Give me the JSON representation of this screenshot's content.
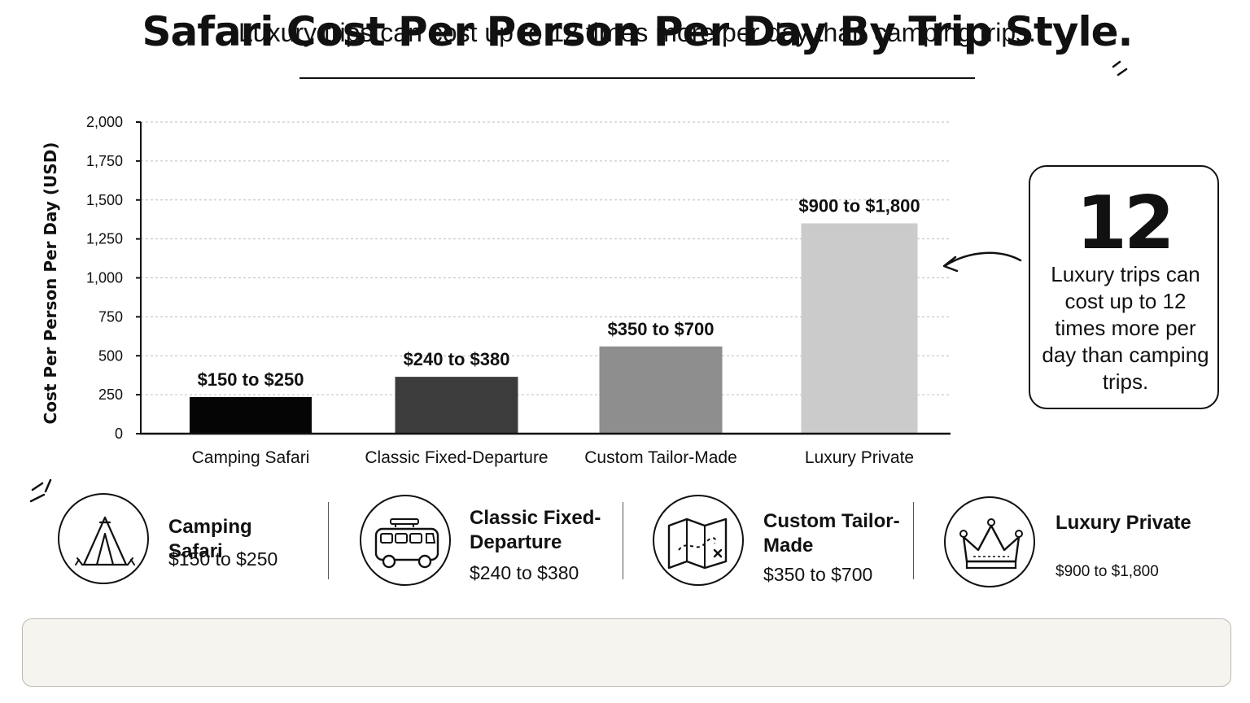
{
  "title": "Safari Cost Per Person Per Day By Trip Style.",
  "chart_data": {
    "type": "bar",
    "categories": [
      "Camping Safari",
      "Classic Fixed-Departure",
      "Custom Tailor-Made",
      "Luxury Private"
    ],
    "values": [
      235,
      365,
      560,
      1350
    ],
    "data_labels": [
      "$150 to $250",
      "$240 to $380",
      "$350 to $700",
      "$900 to $1,800"
    ],
    "colors": [
      "#050505",
      "#3c3c3c",
      "#8e8e8e",
      "#cbcbcb"
    ],
    "ylabel": "Cost Per Person Per Day (USD)",
    "ylim": [
      0,
      2000
    ],
    "yticks": [
      0,
      250,
      500,
      750,
      1000,
      1250,
      1500,
      1750,
      2000
    ],
    "ytick_labels": [
      "0",
      "250",
      "500",
      "750",
      "1,000",
      "1,250",
      "1,500",
      "1,750",
      "2,000"
    ],
    "grid": true
  },
  "callout": {
    "number": "12",
    "text": "Luxury trips can cost up to 12 times more per day than camping trips."
  },
  "summary": [
    {
      "icon": "tent-icon",
      "name": "Camping Safari",
      "price": "$150 to $250"
    },
    {
      "icon": "van-icon",
      "name": "Classic Fixed-Departure",
      "price": "$240 to $380"
    },
    {
      "icon": "map-icon",
      "name": "Custom Tailor-Made",
      "price": "$350 to $700"
    },
    {
      "icon": "crown-icon",
      "name": "Luxury Private",
      "price": "$900 to $1,800"
    }
  ],
  "banner": "Luxury trips can cost up to 12 times more per day than camping trips."
}
